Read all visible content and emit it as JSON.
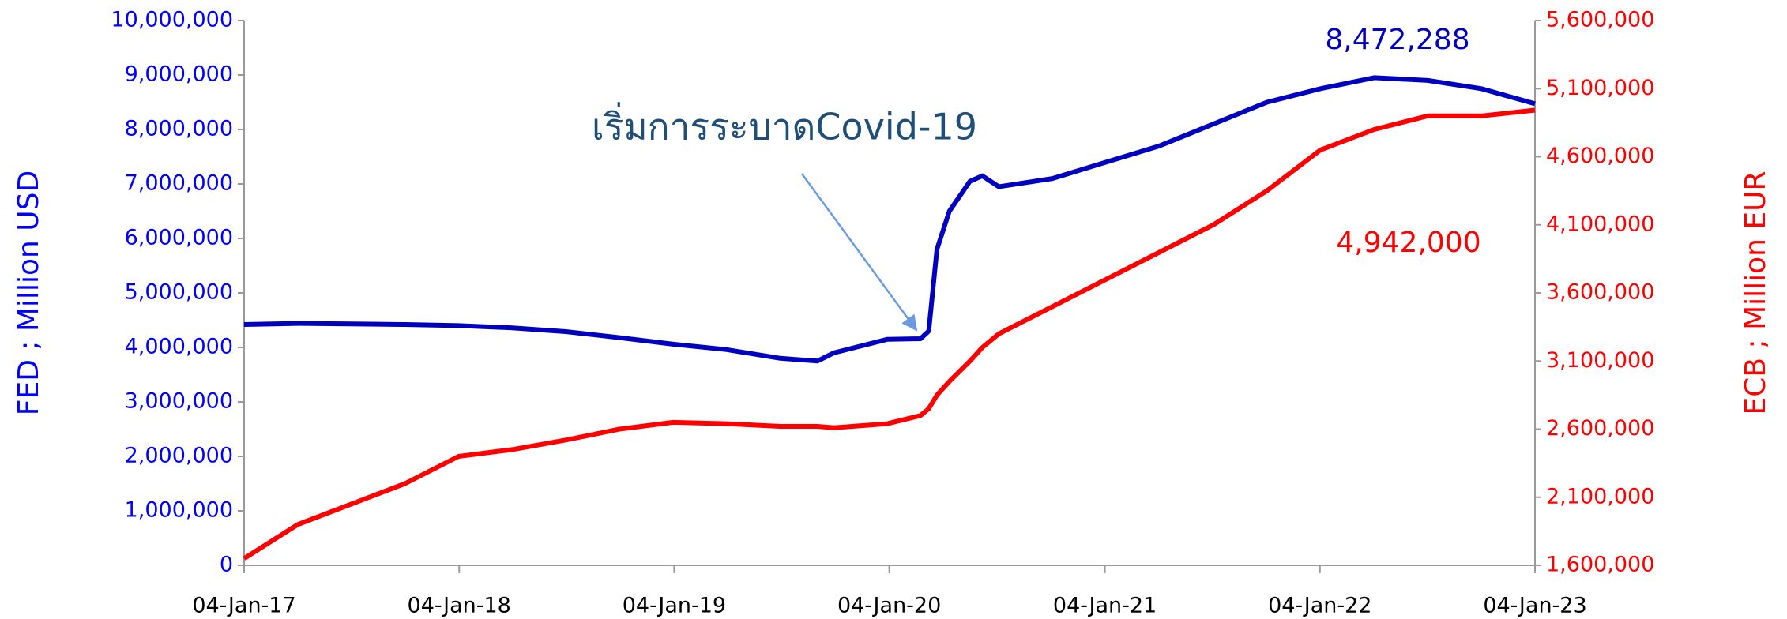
{
  "chart_data": {
    "type": "line",
    "annotation": "เริ่มการระบาดCovid-19",
    "ylabel": "FED  ; Million USD",
    "y2label": "ECB  ; Million EUR",
    "x": [
      "2017-01-04",
      "2017-04-05",
      "2017-07-05",
      "2017-10-04",
      "2018-01-03",
      "2018-04-04",
      "2018-07-04",
      "2018-10-03",
      "2019-01-02",
      "2019-04-03",
      "2019-07-03",
      "2019-09-04",
      "2019-10-02",
      "2020-01-01",
      "2020-02-26",
      "2020-03-11",
      "2020-03-25",
      "2020-04-15",
      "2020-05-20",
      "2020-06-10",
      "2020-07-08",
      "2020-10-07",
      "2021-01-06",
      "2021-04-07",
      "2021-07-07",
      "2021-10-06",
      "2022-01-05",
      "2022-04-06",
      "2022-07-06",
      "2022-10-05",
      "2023-01-04"
    ],
    "series": [
      {
        "name": "FED",
        "color": "#0000c0",
        "end_label": "8,472,288",
        "values": [
          4420000,
          4440000,
          4430000,
          4420000,
          4400000,
          4360000,
          4290000,
          4180000,
          4060000,
          3960000,
          3800000,
          3750000,
          3900000,
          4150000,
          4160000,
          4300000,
          5800000,
          6500000,
          7050000,
          7150000,
          6950000,
          7100000,
          7400000,
          7700000,
          8100000,
          8500000,
          8750000,
          8950000,
          8900000,
          8750000,
          8472288
        ]
      },
      {
        "name": "ECB",
        "color": "#ff0000",
        "axis": "y2",
        "end_label": "4,942,000",
        "values": [
          1650000,
          1900000,
          2050000,
          2200000,
          2400000,
          2450000,
          2520000,
          2600000,
          2650000,
          2640000,
          2620000,
          2620000,
          2610000,
          2640000,
          2700000,
          2750000,
          2850000,
          2950000,
          3100000,
          3200000,
          3300000,
          3500000,
          3700000,
          3900000,
          4100000,
          4350000,
          4650000,
          4800000,
          4900000,
          4900000,
          4942000
        ]
      }
    ],
    "xlim": [
      "2017-01-04",
      "2023-01-04"
    ],
    "xticks": [
      {
        "value": "2017-01-04",
        "label": "04-Jan-17"
      },
      {
        "value": "2018-01-04",
        "label": "04-Jan-18"
      },
      {
        "value": "2019-01-04",
        "label": "04-Jan-19"
      },
      {
        "value": "2020-01-04",
        "label": "04-Jan-20"
      },
      {
        "value": "2021-01-04",
        "label": "04-Jan-21"
      },
      {
        "value": "2022-01-04",
        "label": "04-Jan-22"
      },
      {
        "value": "2023-01-04",
        "label": "04-Jan-23"
      }
    ],
    "ylim": [
      0,
      10000000
    ],
    "yticks": [
      0,
      {
        "value": 1000000,
        "label": "1,000,000"
      },
      {
        "value": 2000000,
        "label": "2,000,000"
      },
      {
        "value": 3000000,
        "label": "3,000,000"
      },
      {
        "value": 4000000,
        "label": "4,000,000"
      },
      {
        "value": 5000000,
        "label": "5,000,000"
      },
      {
        "value": 6000000,
        "label": "6,000,000"
      },
      {
        "value": 7000000,
        "label": "7,000,000"
      },
      {
        "value": 8000000,
        "label": "8,000,000"
      },
      {
        "value": 9000000,
        "label": "9,000,000"
      },
      {
        "value": 10000000,
        "label": "10,000,000"
      }
    ],
    "y2lim": [
      1600000,
      5600000
    ],
    "y2ticks": [
      {
        "value": 1600000,
        "label": "1,600,000"
      },
      {
        "value": 2100000,
        "label": "2,100,000"
      },
      {
        "value": 2600000,
        "label": "2,600,000"
      },
      {
        "value": 3100000,
        "label": "3,100,000"
      },
      {
        "value": 3600000,
        "label": "3,600,000"
      },
      {
        "value": 4100000,
        "label": "4,100,000"
      },
      {
        "value": 4600000,
        "label": "4,600,000"
      },
      {
        "value": 5100000,
        "label": "5,100,000"
      },
      {
        "value": 5600000,
        "label": "5,600,000"
      }
    ],
    "ycolor": "#0000ff",
    "y2color": "#ff0000"
  }
}
